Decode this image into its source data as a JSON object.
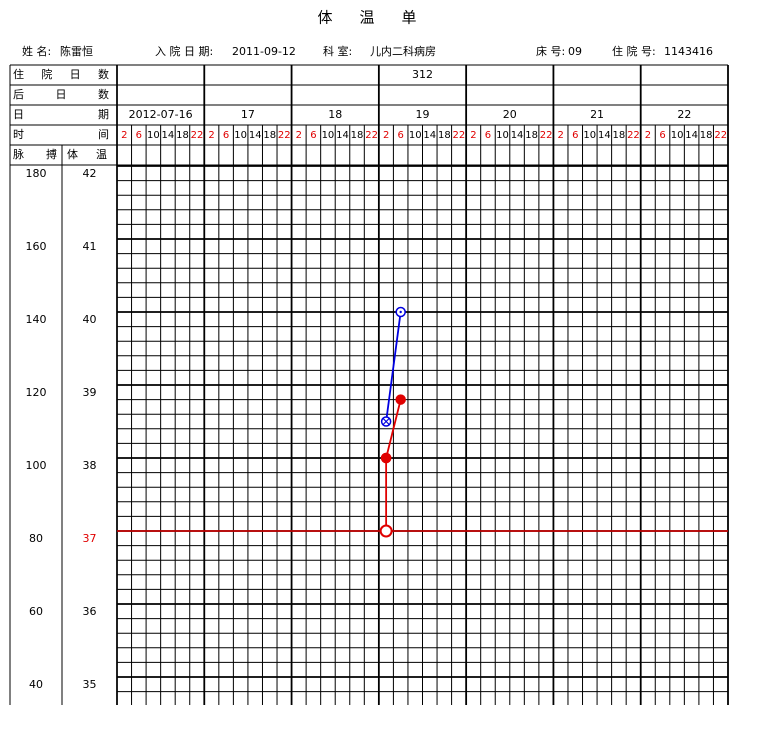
{
  "header": {
    "title": "体　温　单",
    "info": [
      {
        "label": "姓 名:",
        "value": "陈雷恒"
      },
      {
        "label": "入 院 日 期:",
        "value": "2011-09-12"
      },
      {
        "label": "科 室:",
        "value": "儿内二科病房"
      },
      {
        "label": "床 号:",
        "value": "09"
      },
      {
        "label": "住 院 号:",
        "value": "1143416"
      }
    ]
  },
  "table": {
    "row_labels": [
      "住 院 日 数",
      "后 日 数",
      "日 期",
      "时 间"
    ],
    "hospital_days": [
      null,
      null,
      null,
      312,
      null,
      null,
      null
    ],
    "dates": [
      "2012-07-16",
      "17",
      "18",
      "19",
      "20",
      "21",
      "22"
    ],
    "times": [
      2,
      6,
      10,
      14,
      18,
      22
    ],
    "time_colors": [
      "#e00000",
      "#e00000",
      "#000000",
      "#000000",
      "#000000",
      "#e00000"
    ]
  },
  "chart_data": {
    "type": "line",
    "pulse_label": "脉 搏",
    "temperature_label": "体 温",
    "ylim": [
      40,
      180
    ],
    "yticks": [
      180,
      160,
      140,
      120,
      100,
      80,
      60,
      40
    ],
    "y2lim": [
      35,
      42
    ],
    "y2ticks": [
      42,
      41,
      40,
      39,
      38,
      37,
      36,
      35
    ],
    "reference_line": {
      "axis": "y2",
      "value": 37,
      "color": "#e00000"
    },
    "series": [
      {
        "color": "#0000e0",
        "axis": "y2",
        "points": [
          {
            "slot": 18,
            "value": 38.5,
            "marker": "x"
          },
          {
            "slot": 19,
            "value": 40,
            "marker": "o"
          }
        ]
      },
      {
        "color": "#e00000",
        "axis": "y",
        "points": [
          {
            "slot": 18,
            "value": 100,
            "marker": "dot"
          },
          {
            "slot": 19,
            "value": 116,
            "marker": "dot"
          }
        ]
      },
      {
        "color": "#e00000",
        "axis": "y",
        "points": [
          {
            "slot": 18,
            "value": 100,
            "marker": "dot"
          },
          {
            "slot": 18,
            "value": 80,
            "marker": "open"
          }
        ]
      }
    ]
  }
}
